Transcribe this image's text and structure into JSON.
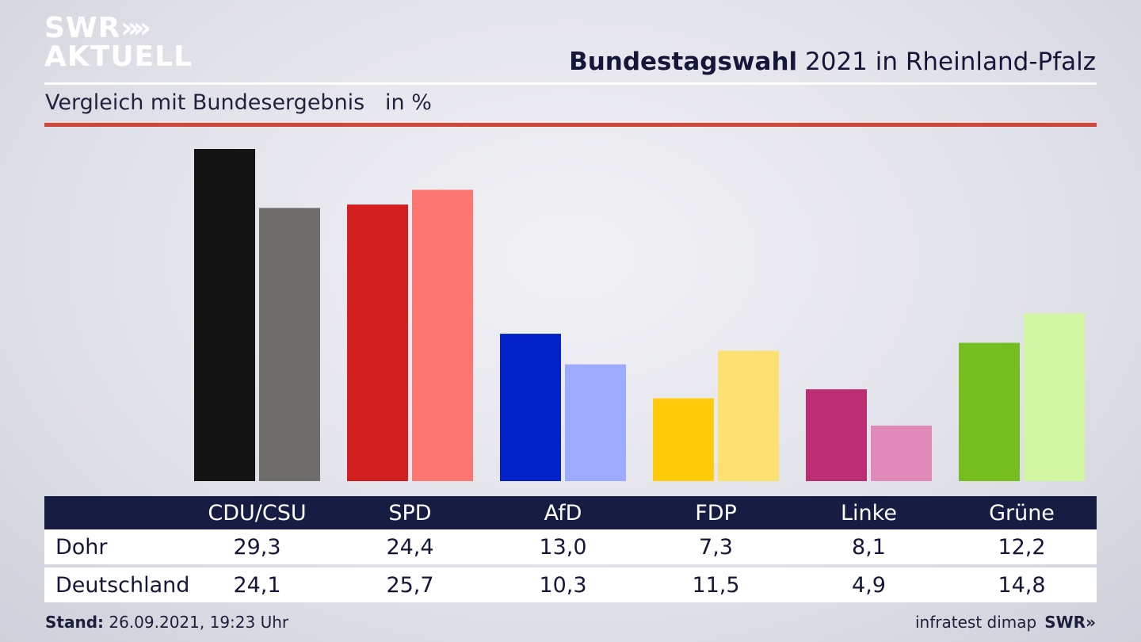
{
  "branding": {
    "logo_line1": "SWR",
    "logo_chevrons": "»",
    "logo_line2": "AKTUELL",
    "footer_source": "infratest dimap",
    "footer_logo": "SWR»"
  },
  "header": {
    "title_bold": "Bundestagswahl",
    "title_rest": " 2021 in Rheinland-Pfalz",
    "subtitle": "Vergleich mit Bundesergebnis   in %"
  },
  "footer": {
    "stand_label": "Stand:",
    "stand_value": " 26.09.2021, 19:23 Uhr"
  },
  "chart_data": {
    "type": "bar",
    "categories": [
      "CDU/CSU",
      "SPD",
      "AfD",
      "FDP",
      "Linke",
      "Grüne"
    ],
    "series": [
      {
        "name": "Dohr",
        "values": [
          29.3,
          24.4,
          13.0,
          7.3,
          8.1,
          12.2
        ],
        "colors": [
          "#141414",
          "#d41f20",
          "#0323c8",
          "#ffcb0b",
          "#bc2d73",
          "#76be1f"
        ]
      },
      {
        "name": "Deutschland",
        "values": [
          24.1,
          25.7,
          10.3,
          11.5,
          4.9,
          14.8
        ],
        "colors": [
          "#706e6b",
          "#fe7671",
          "#9daafe",
          "#fde072",
          "#e08ab9",
          "#d3f6a4"
        ]
      }
    ],
    "display_values": [
      [
        "29,3",
        "24,4",
        "13,0",
        "7,3",
        "8,1",
        "12,2"
      ],
      [
        "24,1",
        "25,7",
        "10,3",
        "11,5",
        "4,9",
        "14,8"
      ]
    ],
    "ylim": [
      0,
      29.3
    ],
    "grid": false,
    "legend": "table-below"
  }
}
